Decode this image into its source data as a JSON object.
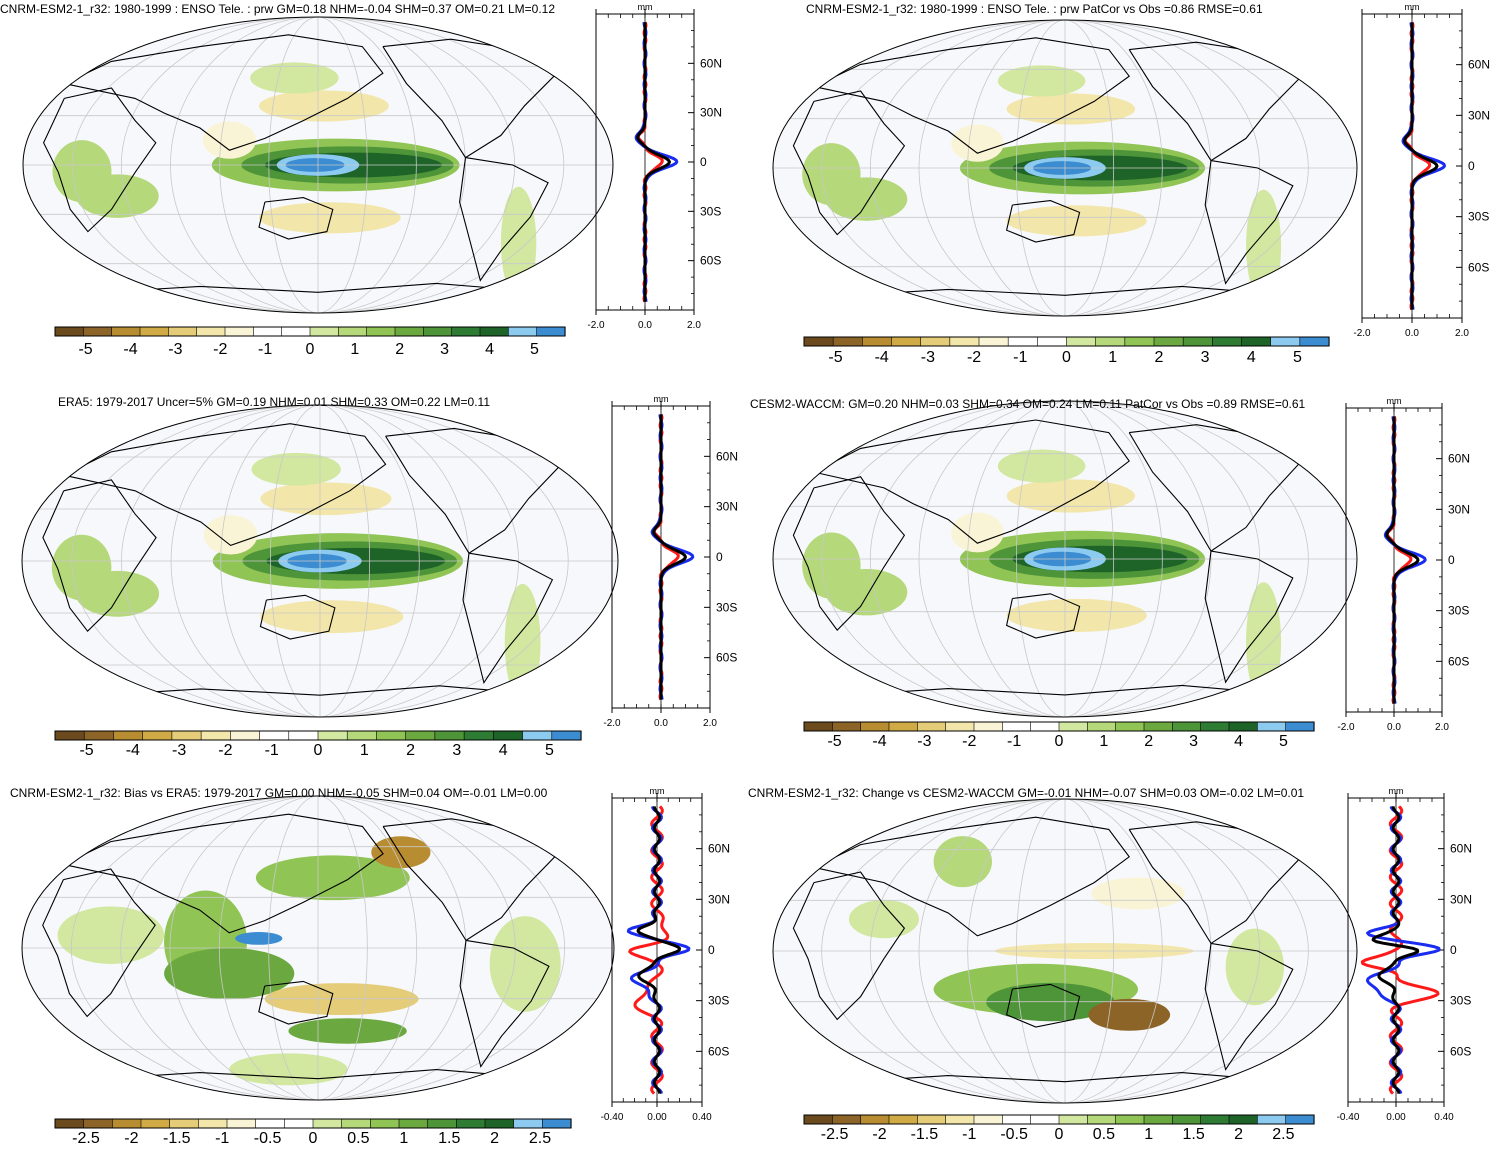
{
  "panels": [
    {
      "id": "p1",
      "title": "CNRM-ESM2-1_r32: 1980-1999 : ENSO Tele. : prw GM=0.18 NHM=-0.04 SHM=0.37 OM=0.21 LM=0.12",
      "colorbar_labels": [
        "-5",
        "-4",
        "-3",
        "-2",
        "-1",
        "0",
        "1",
        "2",
        "3",
        "4",
        "5"
      ],
      "profile_x_ticks": [
        "-2.0",
        "0.0",
        "2.0"
      ],
      "profile_lat_ticks": [
        "60N",
        "30N",
        "0",
        "30S",
        "60S"
      ],
      "profile_unit": "mm"
    },
    {
      "id": "p2",
      "title": "CNRM-ESM2-1_r32: 1980-1999 : ENSO Tele. : prw PatCor vs Obs =0.86 RMSE=0.61",
      "colorbar_labels": [
        "-5",
        "-4",
        "-3",
        "-2",
        "-1",
        "0",
        "1",
        "2",
        "3",
        "4",
        "5"
      ],
      "profile_x_ticks": [
        "-2.0",
        "0.0",
        "2.0"
      ],
      "profile_lat_ticks": [
        "60N",
        "30N",
        "0",
        "30S",
        "60S"
      ],
      "profile_unit": "mm"
    },
    {
      "id": "p3",
      "title": "ERA5: 1979-2017 Uncer=5% GM=0.19 NHM=0.01 SHM=0.33 OM=0.22 LM=0.11",
      "colorbar_labels": [
        "-5",
        "-4",
        "-3",
        "-2",
        "-1",
        "0",
        "1",
        "2",
        "3",
        "4",
        "5"
      ],
      "profile_x_ticks": [
        "-2.0",
        "0.0",
        "2.0"
      ],
      "profile_lat_ticks": [
        "60N",
        "30N",
        "0",
        "30S",
        "60S"
      ],
      "profile_unit": "mm"
    },
    {
      "id": "p4",
      "title": "CESM2-WACCM: GM=0.20 NHM=0.03 SHM=0.34 OM=0.24 LM=0.11 PatCor vs Obs =0.89 RMSE=0.61",
      "colorbar_labels": [
        "-5",
        "-4",
        "-3",
        "-2",
        "-1",
        "0",
        "1",
        "2",
        "3",
        "4",
        "5"
      ],
      "profile_x_ticks": [
        "-2.0",
        "0.0",
        "2.0"
      ],
      "profile_lat_ticks": [
        "60N",
        "30N",
        "0",
        "30S",
        "60S"
      ],
      "profile_unit": "mm"
    },
    {
      "id": "p5",
      "title": "CNRM-ESM2-1_r32: Bias vs ERA5: 1979-2017 GM=0.00 NHM=-0.05 SHM=0.04 OM=-0.01 LM=0.00",
      "colorbar_labels": [
        "-2.5",
        "-2",
        "-1.5",
        "-1",
        "-0.5",
        "0",
        "0.5",
        "1",
        "1.5",
        "2",
        "2.5"
      ],
      "profile_x_ticks": [
        "-0.40",
        "0.00",
        "0.40"
      ],
      "profile_lat_ticks": [
        "60N",
        "30N",
        "0",
        "30S",
        "60S"
      ],
      "profile_unit": "mm"
    },
    {
      "id": "p6",
      "title": "CNRM-ESM2-1_r32: Change vs CESM2-WACCM GM=-0.01 NHM=-0.07 SHM=0.03 OM=-0.02 LM=0.01",
      "colorbar_labels": [
        "-2.5",
        "-2",
        "-1.5",
        "-1",
        "-0.5",
        "0",
        "0.5",
        "1",
        "1.5",
        "2",
        "2.5"
      ],
      "profile_x_ticks": [
        "-0.40",
        "0.00",
        "0.40"
      ],
      "profile_lat_ticks": [
        "60N",
        "30N",
        "0",
        "30S",
        "60S"
      ],
      "profile_unit": "mm"
    }
  ],
  "colors": {
    "palette": [
      "#6b4a1e",
      "#8c6428",
      "#b88c30",
      "#d0aa45",
      "#e4cc78",
      "#f2e6aa",
      "#faf4d6",
      "#ffffff",
      "#ffffff",
      "#d2e8a0",
      "#b4d87a",
      "#90c455",
      "#6ca840",
      "#4e9438",
      "#2e7c34",
      "#1e6428",
      "#8ccaf0",
      "#3c8cd2"
    ],
    "ocean": "#f7f8fc",
    "coast": "#000000",
    "grid": "#c8c8c8",
    "profile_red": "#ff1a1a",
    "profile_blue": "#1a2cf0",
    "profile_black": "#000000"
  },
  "chart_data": [
    {
      "type": "heatmap",
      "title": "CNRM-ESM2-1_r32: 1980-1999 : ENSO Tele. : prw GM=0.18 NHM=-0.04 SHM=0.37 OM=0.21 LM=0.12",
      "colorbar": {
        "min": -5,
        "max": 5,
        "ticks": [
          -5,
          -4,
          -3,
          -2,
          -1,
          0,
          1,
          2,
          3,
          4,
          5
        ]
      },
      "profile": {
        "xlim": [
          -2,
          2
        ],
        "lat_ticks": [
          "60N",
          "30N",
          "0",
          "30S",
          "60S"
        ],
        "unit": "mm"
      }
    },
    {
      "type": "heatmap",
      "title": "CNRM-ESM2-1_r32: 1980-1999 : ENSO Tele. : prw PatCor vs Obs =0.86 RMSE=0.61",
      "colorbar": {
        "min": -5,
        "max": 5,
        "ticks": [
          -5,
          -4,
          -3,
          -2,
          -1,
          0,
          1,
          2,
          3,
          4,
          5
        ]
      },
      "profile": {
        "xlim": [
          -2,
          2
        ],
        "lat_ticks": [
          "60N",
          "30N",
          "0",
          "30S",
          "60S"
        ],
        "unit": "mm"
      }
    },
    {
      "type": "heatmap",
      "title": "ERA5: 1979-2017 Uncer=5% GM=0.19 NHM=0.01 SHM=0.33 OM=0.22 LM=0.11",
      "colorbar": {
        "min": -5,
        "max": 5,
        "ticks": [
          -5,
          -4,
          -3,
          -2,
          -1,
          0,
          1,
          2,
          3,
          4,
          5
        ]
      },
      "profile": {
        "xlim": [
          -2,
          2
        ],
        "lat_ticks": [
          "60N",
          "30N",
          "0",
          "30S",
          "60S"
        ],
        "unit": "mm"
      }
    },
    {
      "type": "heatmap",
      "title": "CESM2-WACCM: GM=0.20 NHM=0.03 SHM=0.34 OM=0.24 LM=0.11 PatCor vs Obs =0.89 RMSE=0.61",
      "colorbar": {
        "min": -5,
        "max": 5,
        "ticks": [
          -5,
          -4,
          -3,
          -2,
          -1,
          0,
          1,
          2,
          3,
          4,
          5
        ]
      },
      "profile": {
        "xlim": [
          -2,
          2
        ],
        "lat_ticks": [
          "60N",
          "30N",
          "0",
          "30S",
          "60S"
        ],
        "unit": "mm"
      }
    },
    {
      "type": "heatmap",
      "title": "CNRM-ESM2-1_r32: Bias vs ERA5: 1979-2017 GM=0.00 NHM=-0.05 SHM=0.04 OM=-0.01 LM=0.00",
      "colorbar": {
        "min": -2.5,
        "max": 2.5,
        "ticks": [
          -2.5,
          -2,
          -1.5,
          -1,
          -0.5,
          0,
          0.5,
          1,
          1.5,
          2,
          2.5
        ]
      },
      "profile": {
        "xlim": [
          -0.4,
          0.4
        ],
        "lat_ticks": [
          "60N",
          "30N",
          "0",
          "30S",
          "60S"
        ],
        "unit": "mm"
      }
    },
    {
      "type": "heatmap",
      "title": "CNRM-ESM2-1_r32: Change vs CESM2-WACCM GM=-0.01 NHM=-0.07 SHM=0.03 OM=-0.02 LM=0.01",
      "colorbar": {
        "min": -2.5,
        "max": 2.5,
        "ticks": [
          -2.5,
          -2,
          -1.5,
          -1,
          -0.5,
          0,
          0.5,
          1,
          1.5,
          2,
          2.5
        ]
      },
      "profile": {
        "xlim": [
          -0.4,
          0.4
        ],
        "lat_ticks": [
          "60N",
          "30N",
          "0",
          "30S",
          "60S"
        ],
        "unit": "mm"
      }
    }
  ]
}
